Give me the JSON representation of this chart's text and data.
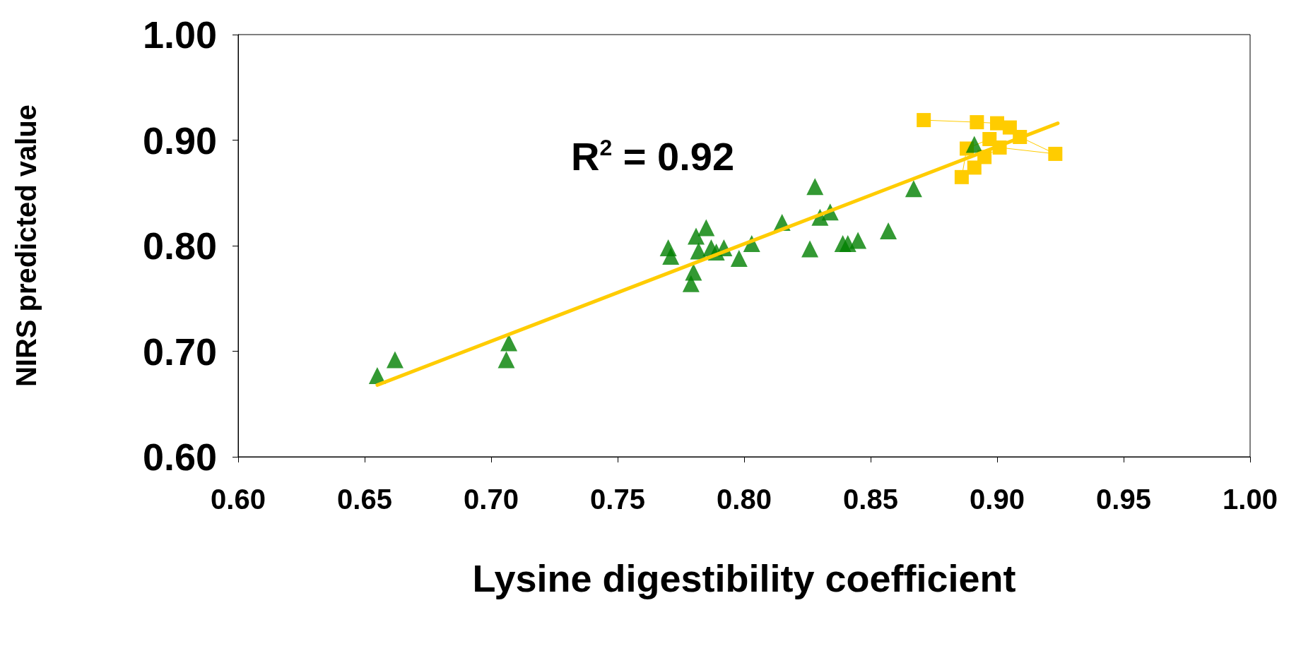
{
  "chart_data": {
    "type": "scatter",
    "xlabel": "Lysine digestibility coefficient",
    "ylabel": "NIRS predicted value",
    "annotations": [
      "R$^{2}$ = 0.92"
    ],
    "xlim": [
      0.6,
      1.0
    ],
    "ylim": [
      0.6,
      1.0
    ],
    "xticks": [
      {
        "value": 0.6,
        "label": "0.60"
      },
      {
        "value": 0.65,
        "label": "0.65"
      },
      {
        "value": 0.7,
        "label": "0.70"
      },
      {
        "value": 0.75,
        "label": "0.75"
      },
      {
        "value": 0.8,
        "label": "0.80"
      },
      {
        "value": 0.85,
        "label": "0.85"
      },
      {
        "value": 0.9,
        "label": "0.90"
      },
      {
        "value": 0.95,
        "label": "0.95"
      },
      {
        "value": 1.0,
        "label": "1.00"
      }
    ],
    "yticks": [
      {
        "value": 0.6,
        "label": "0.60"
      },
      {
        "value": 0.7,
        "label": "0.70"
      },
      {
        "value": 0.8,
        "label": "0.80"
      },
      {
        "value": 0.9,
        "label": "0.90"
      },
      {
        "value": 1.0,
        "label": "1.00"
      }
    ],
    "grid": false,
    "series": [
      {
        "marker": "triangle",
        "color": "#008000",
        "x": [
          0.655,
          0.662,
          0.706,
          0.707,
          0.77,
          0.771,
          0.779,
          0.78,
          0.781,
          0.785,
          0.782,
          0.787,
          0.789,
          0.792,
          0.798,
          0.803,
          0.815,
          0.826,
          0.828,
          0.83,
          0.834,
          0.839,
          0.841,
          0.845,
          0.857,
          0.867,
          0.891
        ],
        "values": [
          0.677,
          0.692,
          0.692,
          0.708,
          0.798,
          0.79,
          0.764,
          0.775,
          0.809,
          0.817,
          0.795,
          0.798,
          0.794,
          0.798,
          0.788,
          0.802,
          0.822,
          0.797,
          0.856,
          0.827,
          0.832,
          0.802,
          0.802,
          0.805,
          0.814,
          0.854,
          0.896
        ]
      },
      {
        "type": "line",
        "marker": "square",
        "line_style": "solid",
        "color": "#ffcc00",
        "x": [
          0.871,
          0.892,
          0.9,
          0.905,
          0.909,
          0.923,
          0.901,
          0.895,
          0.891,
          0.886,
          0.888,
          0.897
        ],
        "values": [
          0.919,
          0.917,
          0.916,
          0.912,
          0.903,
          0.887,
          0.893,
          0.884,
          0.874,
          0.865,
          0.892,
          0.901
        ]
      },
      {
        "type": "line",
        "marker": "none",
        "line_style": "solid",
        "color": "#ffcc00",
        "x": [
          0.655,
          0.924
        ],
        "values": [
          0.668,
          0.916
        ]
      }
    ]
  }
}
